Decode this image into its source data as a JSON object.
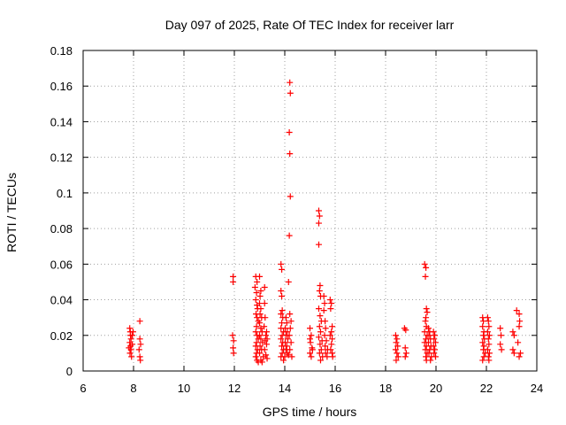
{
  "chart_data": {
    "type": "scatter",
    "title": "Day 097 of 2025, Rate Of TEC Index for receiver larr",
    "xlabel": "GPS time / hours",
    "ylabel": "ROTI / TECUs",
    "xlim": [
      6,
      24
    ],
    "ylim": [
      0,
      0.18
    ],
    "x_ticks": [
      6,
      8,
      10,
      12,
      14,
      16,
      18,
      20,
      22,
      24
    ],
    "x_tick_labels": [
      "6",
      "8",
      "10",
      "12",
      "14",
      "16",
      "18",
      "20",
      "22",
      "24"
    ],
    "y_ticks": [
      0,
      0.02,
      0.04,
      0.06,
      0.08,
      0.1,
      0.12,
      0.14,
      0.16,
      0.18
    ],
    "y_tick_labels": [
      "0",
      "0.02",
      "0.04",
      "0.06",
      "0.08",
      "0.1",
      "0.12",
      "0.14",
      "0.16",
      "0.18"
    ],
    "grid": true,
    "marker": "plus",
    "marker_color": "#ff0000",
    "series": [
      {
        "name": "ROTI",
        "points": [
          [
            7.85,
            0.024
          ],
          [
            7.87,
            0.022
          ],
          [
            7.88,
            0.02
          ],
          [
            7.9,
            0.018
          ],
          [
            7.85,
            0.016
          ],
          [
            7.88,
            0.014
          ],
          [
            7.9,
            0.012
          ],
          [
            7.86,
            0.01
          ],
          [
            7.92,
            0.008
          ],
          [
            7.95,
            0.02
          ],
          [
            7.95,
            0.015
          ],
          [
            7.82,
            0.013
          ],
          [
            7.98,
            0.022
          ],
          [
            8.25,
            0.028
          ],
          [
            8.25,
            0.018
          ],
          [
            8.28,
            0.015
          ],
          [
            8.22,
            0.012
          ],
          [
            8.25,
            0.008
          ],
          [
            8.27,
            0.006
          ],
          [
            11.95,
            0.053
          ],
          [
            11.95,
            0.05
          ],
          [
            11.93,
            0.02
          ],
          [
            11.97,
            0.017
          ],
          [
            11.95,
            0.013
          ],
          [
            11.97,
            0.01
          ],
          [
            12.85,
            0.053
          ],
          [
            12.9,
            0.05
          ],
          [
            12.82,
            0.047
          ],
          [
            12.88,
            0.044
          ],
          [
            12.85,
            0.04
          ],
          [
            12.9,
            0.037
          ],
          [
            12.92,
            0.035
          ],
          [
            12.86,
            0.032
          ],
          [
            12.9,
            0.03
          ],
          [
            12.95,
            0.028
          ],
          [
            12.88,
            0.025
          ],
          [
            12.85,
            0.022
          ],
          [
            12.9,
            0.02
          ],
          [
            12.95,
            0.018
          ],
          [
            12.88,
            0.016
          ],
          [
            12.85,
            0.014
          ],
          [
            12.92,
            0.012
          ],
          [
            12.88,
            0.01
          ],
          [
            12.85,
            0.008
          ],
          [
            12.9,
            0.006
          ],
          [
            12.95,
            0.005
          ],
          [
            13.0,
            0.053
          ],
          [
            13.05,
            0.045
          ],
          [
            13.02,
            0.042
          ],
          [
            13.0,
            0.038
          ],
          [
            13.05,
            0.035
          ],
          [
            13.02,
            0.032
          ],
          [
            13.08,
            0.03
          ],
          [
            13.0,
            0.027
          ],
          [
            13.05,
            0.024
          ],
          [
            13.1,
            0.022
          ],
          [
            13.0,
            0.02
          ],
          [
            13.05,
            0.018
          ],
          [
            13.12,
            0.016
          ],
          [
            13.02,
            0.014
          ],
          [
            13.08,
            0.012
          ],
          [
            13.0,
            0.01
          ],
          [
            13.15,
            0.008
          ],
          [
            13.05,
            0.006
          ],
          [
            13.1,
            0.005
          ],
          [
            13.2,
            0.047
          ],
          [
            13.2,
            0.038
          ],
          [
            13.22,
            0.03
          ],
          [
            13.18,
            0.025
          ],
          [
            13.25,
            0.02
          ],
          [
            13.22,
            0.017
          ],
          [
            13.28,
            0.015
          ],
          [
            13.2,
            0.012
          ],
          [
            13.25,
            0.009
          ],
          [
            13.3,
            0.007
          ],
          [
            13.28,
            0.022
          ],
          [
            13.3,
            0.018
          ],
          [
            13.85,
            0.06
          ],
          [
            13.88,
            0.057
          ],
          [
            13.85,
            0.045
          ],
          [
            13.88,
            0.042
          ],
          [
            13.9,
            0.034
          ],
          [
            13.85,
            0.032
          ],
          [
            13.92,
            0.03
          ],
          [
            13.88,
            0.027
          ],
          [
            13.85,
            0.024
          ],
          [
            13.95,
            0.022
          ],
          [
            13.9,
            0.02
          ],
          [
            13.85,
            0.018
          ],
          [
            13.92,
            0.016
          ],
          [
            13.88,
            0.014
          ],
          [
            13.95,
            0.012
          ],
          [
            13.9,
            0.01
          ],
          [
            13.85,
            0.008
          ],
          [
            13.95,
            0.006
          ],
          [
            14.05,
            0.03
          ],
          [
            14.08,
            0.027
          ],
          [
            14.02,
            0.024
          ],
          [
            14.1,
            0.022
          ],
          [
            14.05,
            0.02
          ],
          [
            14.12,
            0.018
          ],
          [
            14.02,
            0.016
          ],
          [
            14.08,
            0.014
          ],
          [
            14.05,
            0.012
          ],
          [
            14.1,
            0.01
          ],
          [
            14.15,
            0.009
          ],
          [
            14.0,
            0.008
          ],
          [
            14.2,
            0.162
          ],
          [
            14.22,
            0.156
          ],
          [
            14.18,
            0.134
          ],
          [
            14.2,
            0.122
          ],
          [
            14.22,
            0.098
          ],
          [
            14.18,
            0.076
          ],
          [
            14.15,
            0.05
          ],
          [
            14.2,
            0.032
          ],
          [
            14.25,
            0.028
          ],
          [
            14.22,
            0.024
          ],
          [
            14.18,
            0.02
          ],
          [
            14.25,
            0.016
          ],
          [
            14.2,
            0.012
          ],
          [
            14.28,
            0.008
          ],
          [
            15.0,
            0.024
          ],
          [
            15.05,
            0.02
          ],
          [
            15.02,
            0.016
          ],
          [
            15.08,
            0.013
          ],
          [
            15.0,
            0.01
          ],
          [
            15.05,
            0.008
          ],
          [
            15.1,
            0.012
          ],
          [
            15.0,
            0.018
          ],
          [
            15.35,
            0.09
          ],
          [
            15.38,
            0.087
          ],
          [
            15.35,
            0.083
          ],
          [
            15.35,
            0.071
          ],
          [
            15.4,
            0.048
          ],
          [
            15.38,
            0.045
          ],
          [
            15.42,
            0.042
          ],
          [
            15.35,
            0.035
          ],
          [
            15.4,
            0.031
          ],
          [
            15.45,
            0.028
          ],
          [
            15.38,
            0.025
          ],
          [
            15.42,
            0.022
          ],
          [
            15.35,
            0.019
          ],
          [
            15.48,
            0.017
          ],
          [
            15.4,
            0.015
          ],
          [
            15.45,
            0.012
          ],
          [
            15.38,
            0.01
          ],
          [
            15.5,
            0.008
          ],
          [
            15.42,
            0.006
          ],
          [
            15.55,
            0.042
          ],
          [
            15.58,
            0.038
          ],
          [
            15.55,
            0.034
          ],
          [
            15.6,
            0.028
          ],
          [
            15.62,
            0.024
          ],
          [
            15.58,
            0.02
          ],
          [
            15.65,
            0.017
          ],
          [
            15.6,
            0.014
          ],
          [
            15.7,
            0.012
          ],
          [
            15.62,
            0.01
          ],
          [
            15.68,
            0.008
          ],
          [
            15.8,
            0.04
          ],
          [
            15.85,
            0.038
          ],
          [
            15.82,
            0.035
          ],
          [
            15.88,
            0.025
          ],
          [
            15.85,
            0.022
          ],
          [
            15.8,
            0.02
          ],
          [
            15.88,
            0.018
          ],
          [
            15.85,
            0.015
          ],
          [
            15.82,
            0.012
          ],
          [
            15.88,
            0.01
          ],
          [
            15.9,
            0.008
          ],
          [
            18.4,
            0.02
          ],
          [
            18.45,
            0.018
          ],
          [
            18.42,
            0.016
          ],
          [
            18.48,
            0.014
          ],
          [
            18.4,
            0.012
          ],
          [
            18.45,
            0.01
          ],
          [
            18.5,
            0.008
          ],
          [
            18.42,
            0.006
          ],
          [
            18.75,
            0.024
          ],
          [
            18.8,
            0.023
          ],
          [
            18.78,
            0.013
          ],
          [
            18.82,
            0.01
          ],
          [
            18.78,
            0.008
          ],
          [
            19.55,
            0.06
          ],
          [
            19.6,
            0.058
          ],
          [
            19.58,
            0.053
          ],
          [
            19.62,
            0.035
          ],
          [
            19.65,
            0.033
          ],
          [
            19.6,
            0.03
          ],
          [
            19.58,
            0.028
          ],
          [
            19.62,
            0.025
          ],
          [
            19.55,
            0.022
          ],
          [
            19.65,
            0.02
          ],
          [
            19.6,
            0.018
          ],
          [
            19.55,
            0.016
          ],
          [
            19.62,
            0.014
          ],
          [
            19.58,
            0.012
          ],
          [
            19.65,
            0.01
          ],
          [
            19.6,
            0.008
          ],
          [
            19.62,
            0.006
          ],
          [
            19.7,
            0.024
          ],
          [
            19.75,
            0.022
          ],
          [
            19.72,
            0.02
          ],
          [
            19.78,
            0.018
          ],
          [
            19.7,
            0.016
          ],
          [
            19.8,
            0.014
          ],
          [
            19.75,
            0.012
          ],
          [
            19.72,
            0.01
          ],
          [
            19.82,
            0.008
          ],
          [
            19.78,
            0.006
          ],
          [
            19.9,
            0.022
          ],
          [
            19.95,
            0.02
          ],
          [
            19.92,
            0.018
          ],
          [
            19.98,
            0.016
          ],
          [
            19.9,
            0.014
          ],
          [
            19.95,
            0.012
          ],
          [
            19.92,
            0.01
          ],
          [
            19.98,
            0.008
          ],
          [
            21.85,
            0.03
          ],
          [
            21.88,
            0.028
          ],
          [
            21.85,
            0.025
          ],
          [
            21.9,
            0.022
          ],
          [
            21.88,
            0.02
          ],
          [
            21.92,
            0.018
          ],
          [
            21.85,
            0.016
          ],
          [
            21.9,
            0.014
          ],
          [
            21.88,
            0.012
          ],
          [
            21.95,
            0.01
          ],
          [
            21.9,
            0.008
          ],
          [
            21.85,
            0.006
          ],
          [
            22.05,
            0.03
          ],
          [
            22.08,
            0.028
          ],
          [
            22.1,
            0.025
          ],
          [
            22.05,
            0.022
          ],
          [
            22.12,
            0.02
          ],
          [
            22.08,
            0.018
          ],
          [
            22.1,
            0.015
          ],
          [
            22.05,
            0.012
          ],
          [
            22.12,
            0.01
          ],
          [
            22.08,
            0.008
          ],
          [
            22.1,
            0.006
          ],
          [
            22.55,
            0.024
          ],
          [
            22.58,
            0.02
          ],
          [
            22.55,
            0.015
          ],
          [
            22.6,
            0.012
          ],
          [
            23.05,
            0.022
          ],
          [
            23.1,
            0.02
          ],
          [
            23.05,
            0.012
          ],
          [
            23.1,
            0.01
          ],
          [
            23.2,
            0.034
          ],
          [
            23.3,
            0.032
          ],
          [
            23.32,
            0.028
          ],
          [
            23.3,
            0.025
          ],
          [
            23.25,
            0.016
          ],
          [
            23.35,
            0.01
          ],
          [
            23.3,
            0.008
          ]
        ]
      }
    ]
  }
}
